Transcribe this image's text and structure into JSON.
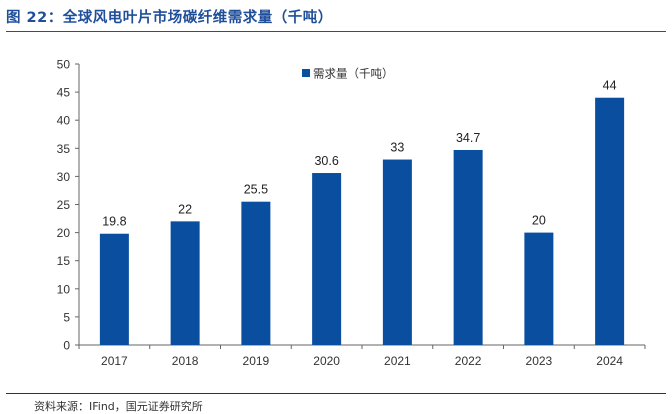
{
  "figure": {
    "title": "图 22：全球风电叶片市场碳纤维需求量（千吨）",
    "source": "资料来源：IFind，国元证券研究所"
  },
  "colors": {
    "bar": "#0a4ea0",
    "title": "#1f4e9a"
  },
  "chart_data": {
    "type": "bar",
    "categories": [
      "2017",
      "2018",
      "2019",
      "2020",
      "2021",
      "2022",
      "2023",
      "2024"
    ],
    "series": [
      {
        "name": "需求量（千吨）",
        "values": [
          19.8,
          22,
          25.5,
          30.6,
          33,
          34.7,
          20,
          44
        ]
      }
    ],
    "data_labels": [
      "19.8",
      "22",
      "25.5",
      "30.6",
      "33",
      "34.7",
      "20",
      "44"
    ],
    "ylim": [
      0,
      50
    ],
    "yticks": [
      0,
      5,
      10,
      15,
      20,
      25,
      30,
      35,
      40,
      45,
      50
    ],
    "xlabel": "",
    "ylabel": "",
    "grid": false,
    "legend_position": "top-right"
  }
}
